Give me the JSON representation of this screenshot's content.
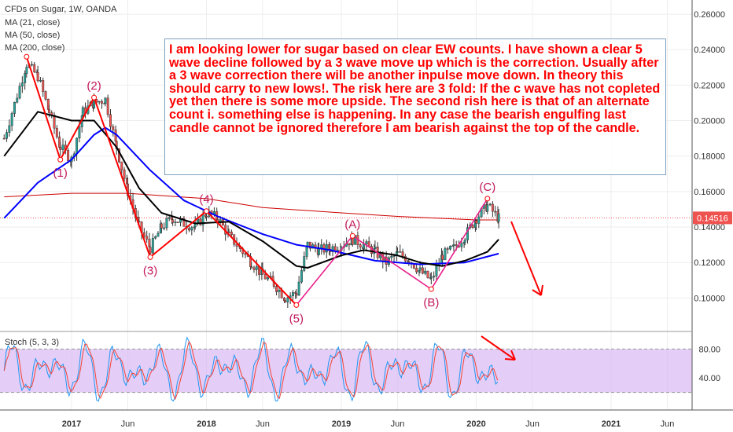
{
  "legend": {
    "symbol": "CFDs on Sugar, 1W, OANDA",
    "ma21": "MA (21, close)",
    "ma50": "MA (50, close)",
    "ma200": "MA (200, close)"
  },
  "annotation": "I am looking lower for sugar based on clear EW counts. I have shown a clear 5 wave decline followed by a 3 wave move up which is the correction. Usually after a 3 wave correction there will be another inpulse move down. In theory this should carry to new lows!. The risk here are 3 fold: If the c wave has not copleted yet then there is some more upside. The second rish here is that of an alternate count i. something else is happening. In any case the bearish engulfing last candle cannot be ignored therefore I am bearish against the top of the candle.",
  "stoch_label": "Stoch (5, 3, 3)",
  "colors": {
    "up": "#26a69a",
    "down": "#ef5350",
    "candle": "#333333",
    "ma21": "#000000",
    "ma50": "#0000ff",
    "ma200": "#cc0000",
    "wave": "#ff0000",
    "wave_abc": "#e91e8c",
    "wave_label": "#c2185b",
    "stoch_k": "#2196f3",
    "stoch_d": "#f44336",
    "stoch_band": "#d9b8f2"
  },
  "chart_data": {
    "type": "candlestick",
    "title": "CFDs on Sugar, 1W, OANDA",
    "y_ticks": [
      "0.26000",
      "0.24000",
      "0.22000",
      "0.20000",
      "0.18000",
      "0.16000",
      "0.14000",
      "0.12000",
      "0.10000"
    ],
    "y_range": [
      0.082,
      0.268
    ],
    "x_ticks": [
      "2017",
      "Jun",
      "2018",
      "Jun",
      "2019",
      "Jun",
      "2020",
      "Jun",
      "2021",
      "Jun"
    ],
    "last_price": "0.14516",
    "price_path": [
      [
        "2016-07",
        0.19
      ],
      [
        "2016-09",
        0.232
      ],
      [
        "2016-10",
        0.225
      ],
      [
        "2016-11",
        0.205
      ],
      [
        "2016-12",
        0.185
      ],
      [
        "2017-01",
        0.178
      ],
      [
        "2017-02",
        0.205
      ],
      [
        "2017-03",
        0.21
      ],
      [
        "2017-04",
        0.212
      ],
      [
        "2017-05",
        0.185
      ],
      [
        "2017-06",
        0.16
      ],
      [
        "2017-07",
        0.14
      ],
      [
        "2017-08",
        0.128
      ],
      [
        "2017-09",
        0.14
      ],
      [
        "2017-10",
        0.145
      ],
      [
        "2017-11",
        0.142
      ],
      [
        "2017-12",
        0.14
      ],
      [
        "2018-01",
        0.148
      ],
      [
        "2018-02",
        0.145
      ],
      [
        "2018-03",
        0.135
      ],
      [
        "2018-04",
        0.128
      ],
      [
        "2018-05",
        0.12
      ],
      [
        "2018-06",
        0.113
      ],
      [
        "2018-07",
        0.108
      ],
      [
        "2018-08",
        0.1
      ],
      [
        "2018-09",
        0.103
      ],
      [
        "2018-10",
        0.13
      ],
      [
        "2018-11",
        0.127
      ],
      [
        "2018-12",
        0.128
      ],
      [
        "2019-01",
        0.13
      ],
      [
        "2019-02",
        0.133
      ],
      [
        "2019-03",
        0.13
      ],
      [
        "2019-04",
        0.126
      ],
      [
        "2019-05",
        0.12
      ],
      [
        "2019-06",
        0.125
      ],
      [
        "2019-07",
        0.122
      ],
      [
        "2019-08",
        0.115
      ],
      [
        "2019-09",
        0.11
      ],
      [
        "2019-10",
        0.124
      ],
      [
        "2019-11",
        0.128
      ],
      [
        "2019-12",
        0.135
      ],
      [
        "2020-01",
        0.145
      ],
      [
        "2020-02",
        0.152
      ],
      [
        "2020-03",
        0.145
      ]
    ],
    "ma21": [
      [
        "2016-07",
        0.18
      ],
      [
        "2016-10",
        0.205
      ],
      [
        "2017-01",
        0.2
      ],
      [
        "2017-03",
        0.2
      ],
      [
        "2017-05",
        0.185
      ],
      [
        "2017-07",
        0.162
      ],
      [
        "2017-09",
        0.148
      ],
      [
        "2017-12",
        0.142
      ],
      [
        "2018-03",
        0.143
      ],
      [
        "2018-06",
        0.132
      ],
      [
        "2018-09",
        0.118
      ],
      [
        "2018-10",
        0.117
      ],
      [
        "2019-01",
        0.124
      ],
      [
        "2019-03",
        0.127
      ],
      [
        "2019-06",
        0.124
      ],
      [
        "2019-08",
        0.12
      ],
      [
        "2019-10",
        0.118
      ],
      [
        "2019-12",
        0.121
      ],
      [
        "2020-02",
        0.126
      ],
      [
        "2020-03",
        0.133
      ]
    ],
    "ma50": [
      [
        "2016-07",
        0.145
      ],
      [
        "2016-10",
        0.165
      ],
      [
        "2017-01",
        0.178
      ],
      [
        "2017-03",
        0.192
      ],
      [
        "2017-04",
        0.196
      ],
      [
        "2017-05",
        0.192
      ],
      [
        "2017-08",
        0.172
      ],
      [
        "2017-11",
        0.155
      ],
      [
        "2018-02",
        0.146
      ],
      [
        "2018-06",
        0.136
      ],
      [
        "2018-09",
        0.13
      ],
      [
        "2018-12",
        0.127
      ],
      [
        "2019-04",
        0.121
      ],
      [
        "2019-08",
        0.119
      ],
      [
        "2019-12",
        0.12
      ],
      [
        "2020-03",
        0.125
      ]
    ],
    "ma200": [
      [
        "2016-07",
        0.157
      ],
      [
        "2017-01",
        0.159
      ],
      [
        "2017-06",
        0.159
      ],
      [
        "2018-01",
        0.156
      ],
      [
        "2018-06",
        0.151
      ],
      [
        "2019-01",
        0.148
      ],
      [
        "2019-06",
        0.146
      ],
      [
        "2020-01",
        0.144
      ],
      [
        "2020-03",
        0.144
      ]
    ],
    "impulse_waves": [
      {
        "label": "(1)",
        "date": "2016-12",
        "price": 0.178
      },
      {
        "label": "(2)",
        "date": "2017-03",
        "price": 0.213
      },
      {
        "label": "(3)",
        "date": "2017-08",
        "price": 0.123
      },
      {
        "label": "(4)",
        "date": "2018-01",
        "price": 0.149
      },
      {
        "label": "(5)",
        "date": "2018-09",
        "price": 0.096
      }
    ],
    "corrective_waves": [
      {
        "label": "(A)",
        "date": "2019-02",
        "price": 0.135
      },
      {
        "label": "(B)",
        "date": "2019-09",
        "price": 0.105
      },
      {
        "label": "(C)",
        "date": "2020-02",
        "price": 0.156
      }
    ],
    "wave_start": {
      "date": "2016-09",
      "price": 0.236
    },
    "stochastic": {
      "ticks": [
        "80.00",
        "40.00"
      ],
      "overbought": 80,
      "oversold": 20
    }
  }
}
